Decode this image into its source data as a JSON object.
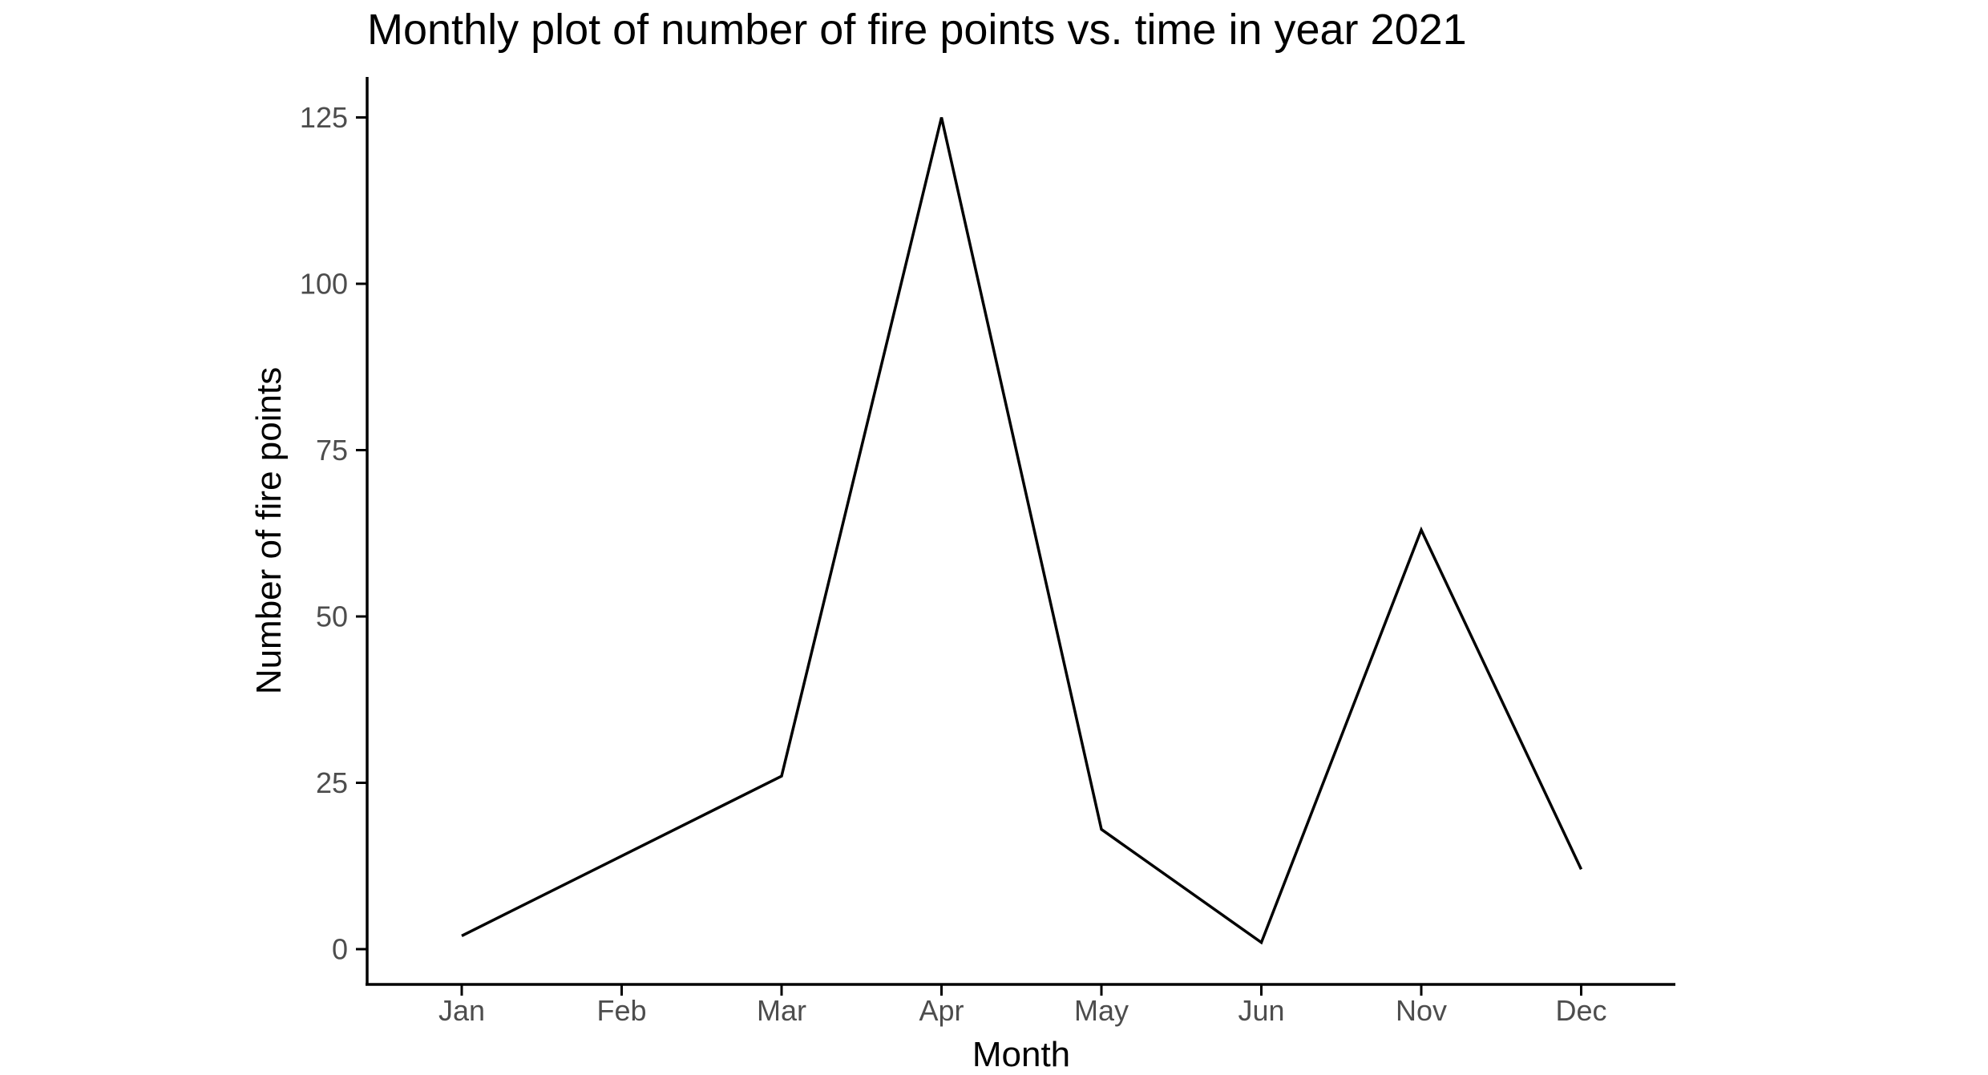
{
  "chart_data": {
    "type": "line",
    "title": "Monthly plot of number of fire points vs. time in year 2021",
    "xlabel": "Month",
    "ylabel": "Number of fire points",
    "categories": [
      "Jan",
      "Feb",
      "Mar",
      "Apr",
      "May",
      "Jun",
      "Nov",
      "Dec"
    ],
    "series": [
      {
        "values": [
          2,
          14,
          26,
          125,
          18,
          1,
          63,
          12
        ]
      }
    ],
    "yticks": [
      0,
      25,
      50,
      75,
      100,
      125
    ],
    "ylim": [
      -5,
      131
    ],
    "grid": false,
    "legend": "none",
    "colors": {
      "line": "#000000",
      "axis": "#000000",
      "tick_text": "#4d4d4d",
      "background": "#ffffff"
    }
  }
}
